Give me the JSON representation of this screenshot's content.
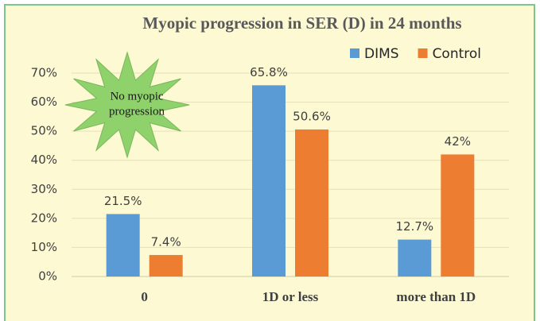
{
  "chart_data": {
    "type": "bar",
    "title": "Myopic progression in SER (D) in 24 months",
    "annotation": [
      "No myopic",
      "progression"
    ],
    "categories": [
      "0",
      "1D or less",
      "more than 1D"
    ],
    "series": [
      {
        "name": "DIMS",
        "color": "#5b9bd5",
        "values": [
          21.5,
          65.8,
          12.7
        ],
        "value_labels": [
          "21.5%",
          "65.8%",
          "12.7%"
        ]
      },
      {
        "name": "Control",
        "color": "#ed7d31",
        "values": [
          7.4,
          50.6,
          42
        ],
        "value_labels": [
          "7.4%",
          "50.6%",
          "42%"
        ]
      }
    ],
    "ylim": [
      0,
      70
    ],
    "yticks": [
      {
        "value": 0,
        "label": "0%"
      },
      {
        "value": 10,
        "label": "10%"
      },
      {
        "value": 20,
        "label": "20%"
      },
      {
        "value": 30,
        "label": "30%"
      },
      {
        "value": 40,
        "label": "40%"
      },
      {
        "value": 50,
        "label": "50%"
      },
      {
        "value": 60,
        "label": "60%"
      },
      {
        "value": 70,
        "label": "70%"
      }
    ],
    "grid": true,
    "legend": "top-right"
  }
}
